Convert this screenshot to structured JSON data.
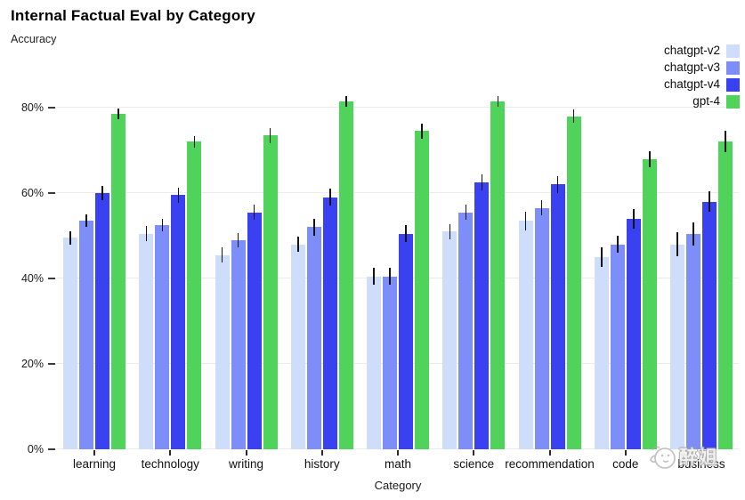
{
  "title": "Internal Factual Eval by Category",
  "y_axis_title": "Accuracy",
  "x_axis_title": "Category",
  "watermark": {
    "text": "醉姐"
  },
  "chart_data": {
    "type": "bar",
    "title": "Internal Factual Eval by Category",
    "ylabel": "Accuracy",
    "xlabel": "Category",
    "grid": "horizontal",
    "legend_position": "top-right",
    "ylim": [
      0,
      86.7
    ],
    "ytick_values": [
      0,
      20,
      40,
      60,
      80
    ],
    "ytick_labels": [
      "0%",
      "20%",
      "40%",
      "60%",
      "80%"
    ],
    "categories": [
      "learning",
      "technology",
      "writing",
      "history",
      "math",
      "science",
      "recommendation",
      "code",
      "business"
    ],
    "series": [
      {
        "name": "chatgpt-v2",
        "color": "#cdddfa",
        "values": [
          49.5,
          50.5,
          45.5,
          48,
          40.5,
          51,
          53.5,
          45,
          48
        ],
        "errors": [
          1.5,
          1.7,
          1.7,
          1.8,
          2,
          1.8,
          2.2,
          2.3,
          2.8
        ]
      },
      {
        "name": "chatgpt-v3",
        "color": "#7e8ef8",
        "values": [
          53.5,
          52.5,
          49,
          52,
          40.5,
          55.5,
          56.5,
          48,
          50.5
        ],
        "errors": [
          1.5,
          1.5,
          1.7,
          1.9,
          2,
          1.7,
          1.8,
          2,
          2.7
        ]
      },
      {
        "name": "chatgpt-v4",
        "color": "#3a41f0",
        "values": [
          60,
          59.5,
          55.5,
          59,
          50.5,
          62.5,
          62,
          54,
          58
        ],
        "errors": [
          1.7,
          1.8,
          1.7,
          2,
          2,
          1.8,
          2,
          2.3,
          2.4
        ]
      },
      {
        "name": "gpt-4",
        "color": "#4fd35a",
        "values": [
          78.5,
          72,
          73.5,
          81.5,
          74.5,
          81.5,
          78,
          68,
          72
        ],
        "errors": [
          1.3,
          1.3,
          1.8,
          1.3,
          1.8,
          1.3,
          1.5,
          1.9,
          2.5
        ]
      }
    ]
  }
}
